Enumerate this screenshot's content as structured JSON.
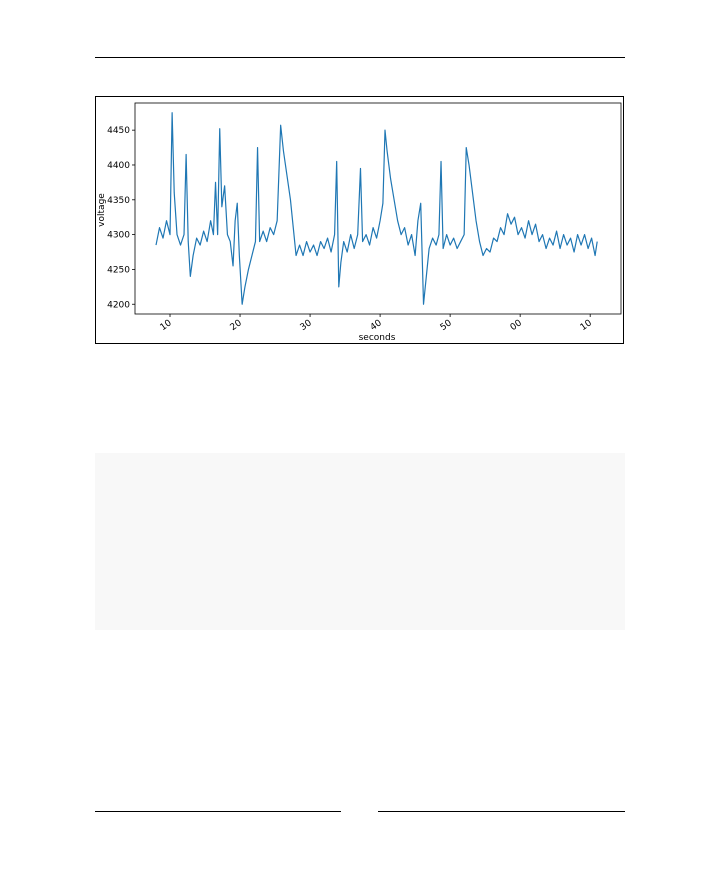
{
  "chart_data": {
    "type": "line",
    "xlabel": "seconds",
    "ylabel": "voltage",
    "color": "#1f77b4",
    "xlim": [
      5,
      74.4
    ],
    "ylim": [
      4186,
      4489
    ],
    "xticks": [
      10,
      20,
      30,
      40,
      50,
      {
        "value": 60,
        "label": "00"
      },
      {
        "value": 70,
        "label": "10"
      }
    ],
    "yticks": [
      4200,
      4250,
      4300,
      4350,
      4400,
      4450
    ],
    "x": [
      8,
      8.5,
      9,
      9.5,
      10,
      10.3,
      10.6,
      11,
      11.5,
      12,
      12.3,
      12.6,
      12.9,
      13.3,
      13.8,
      14.3,
      14.8,
      15.3,
      15.8,
      16.2,
      16.5,
      16.8,
      17.1,
      17.4,
      17.8,
      18.2,
      18.6,
      19,
      19.3,
      19.6,
      19.9,
      20.3,
      20.7,
      21.2,
      21.7,
      22.2,
      22.5,
      22.8,
      23.3,
      23.8,
      24.3,
      24.8,
      25.3,
      25.8,
      26.2,
      26.7,
      27.2,
      27.6,
      28,
      28.5,
      29,
      29.5,
      30,
      30.5,
      31,
      31.5,
      32,
      32.5,
      33,
      33.5,
      33.8,
      34.1,
      34.4,
      34.8,
      35.3,
      35.8,
      36.3,
      36.8,
      37.2,
      37.5,
      38,
      38.5,
      39,
      39.5,
      40,
      40.4,
      40.7,
      41,
      41.5,
      42,
      42.5,
      43,
      43.5,
      44,
      44.5,
      45,
      45.4,
      45.8,
      46.2,
      46.6,
      47,
      47.5,
      48,
      48.4,
      48.7,
      49,
      49.5,
      50,
      50.5,
      51,
      51.5,
      52,
      52.3,
      52.7,
      53.2,
      53.7,
      54.2,
      54.7,
      55.2,
      55.7,
      56.2,
      56.7,
      57.2,
      57.7,
      58.2,
      58.7,
      59.2,
      59.7,
      60.2,
      60.7,
      61.2,
      61.7,
      62.2,
      62.7,
      63.2,
      63.7,
      64.2,
      64.7,
      65.2,
      65.7,
      66.2,
      66.7,
      67.2,
      67.7,
      68.2,
      68.7,
      69.2,
      69.7,
      70.2,
      70.7,
      71
    ],
    "values": [
      4285,
      4310,
      4295,
      4320,
      4300,
      4475,
      4360,
      4300,
      4285,
      4300,
      4415,
      4290,
      4240,
      4270,
      4295,
      4285,
      4305,
      4290,
      4320,
      4300,
      4375,
      4300,
      4452,
      4340,
      4370,
      4300,
      4290,
      4255,
      4320,
      4345,
      4270,
      4200,
      4225,
      4250,
      4270,
      4290,
      4425,
      4290,
      4305,
      4290,
      4310,
      4300,
      4320,
      4457,
      4420,
      4385,
      4350,
      4310,
      4270,
      4285,
      4270,
      4290,
      4275,
      4285,
      4270,
      4290,
      4280,
      4295,
      4275,
      4300,
      4405,
      4225,
      4260,
      4290,
      4275,
      4300,
      4280,
      4300,
      4395,
      4290,
      4300,
      4285,
      4310,
      4295,
      4320,
      4345,
      4450,
      4420,
      4380,
      4350,
      4320,
      4300,
      4310,
      4285,
      4300,
      4270,
      4320,
      4345,
      4200,
      4240,
      4280,
      4295,
      4285,
      4300,
      4405,
      4280,
      4300,
      4285,
      4295,
      4280,
      4290,
      4300,
      4425,
      4400,
      4360,
      4320,
      4290,
      4270,
      4280,
      4275,
      4295,
      4290,
      4310,
      4300,
      4330,
      4315,
      4325,
      4300,
      4310,
      4295,
      4320,
      4300,
      4315,
      4290,
      4300,
      4280,
      4295,
      4285,
      4305,
      4280,
      4300,
      4285,
      4295,
      4275,
      4300,
      4285,
      4300,
      4280,
      4295,
      4270,
      4290
    ]
  }
}
